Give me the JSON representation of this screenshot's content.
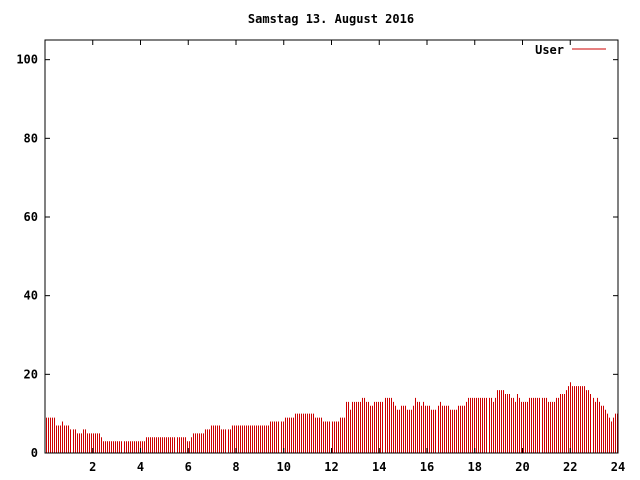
{
  "chart_data": {
    "type": "bar",
    "title": "Samstag 13. August 2016",
    "xlabel": "",
    "ylabel": "",
    "xlim": [
      0,
      24
    ],
    "ylim": [
      0,
      105
    ],
    "x_ticks": [
      2,
      4,
      6,
      8,
      10,
      12,
      14,
      16,
      18,
      20,
      22,
      24
    ],
    "y_ticks": [
      0,
      20,
      40,
      60,
      80,
      100
    ],
    "grid": false,
    "legend_position": "top-right",
    "series": [
      {
        "name": "User",
        "color": "#cc0000",
        "interval_hours": 0.0833,
        "values": [
          9,
          9,
          9,
          9,
          9,
          7,
          7,
          7,
          8,
          7,
          7,
          7,
          6,
          6,
          6,
          5,
          5,
          5,
          6,
          6,
          5,
          5,
          5,
          5,
          5,
          5,
          5,
          4,
          3,
          3,
          3,
          3,
          3,
          3,
          3,
          3,
          3,
          3,
          3,
          3,
          3,
          3,
          3,
          3,
          3,
          3,
          3,
          3,
          3,
          4,
          4,
          4,
          4,
          4,
          4,
          4,
          4,
          4,
          4,
          4,
          4,
          4,
          4,
          4,
          4,
          4,
          4,
          4,
          4,
          3,
          3,
          4,
          5,
          5,
          5,
          5,
          5,
          5,
          6,
          6,
          6,
          7,
          7,
          7,
          7,
          7,
          6,
          6,
          6,
          6,
          6,
          7,
          7,
          7,
          7,
          7,
          7,
          7,
          7,
          7,
          7,
          7,
          7,
          7,
          7,
          7,
          7,
          7,
          7,
          7,
          8,
          8,
          8,
          8,
          8,
          8,
          8,
          9,
          9,
          9,
          9,
          9,
          10,
          10,
          10,
          10,
          10,
          10,
          10,
          10,
          10,
          10,
          9,
          9,
          9,
          9,
          8,
          8,
          8,
          8,
          8,
          8,
          8,
          8,
          9,
          9,
          9,
          13,
          13,
          11,
          13,
          13,
          13,
          13,
          13,
          14,
          14,
          13,
          13,
          12,
          12,
          13,
          13,
          13,
          13,
          13,
          14,
          14,
          14,
          14,
          13,
          12,
          11,
          11,
          12,
          12,
          12,
          11,
          11,
          11,
          12,
          14,
          13,
          13,
          12,
          13,
          12,
          12,
          12,
          11,
          11,
          11,
          12,
          13,
          12,
          12,
          12,
          12,
          11,
          11,
          11,
          11,
          12,
          12,
          12,
          12,
          13,
          14,
          14,
          14,
          14,
          14,
          14,
          14,
          14,
          14,
          14,
          14,
          14,
          13,
          14,
          16,
          16,
          16,
          16,
          15,
          15,
          15,
          14,
          14,
          13,
          15,
          14,
          13,
          13,
          13,
          13,
          14,
          14,
          14,
          14,
          14,
          14,
          14,
          14,
          14,
          13,
          13,
          13,
          13,
          14,
          14,
          15,
          15,
          15,
          16,
          17,
          18,
          17,
          17,
          17,
          17,
          17,
          17,
          17,
          16,
          16,
          15,
          14,
          13,
          14,
          13,
          12,
          12,
          11,
          10,
          9,
          8,
          9,
          10,
          10
        ]
      }
    ]
  }
}
